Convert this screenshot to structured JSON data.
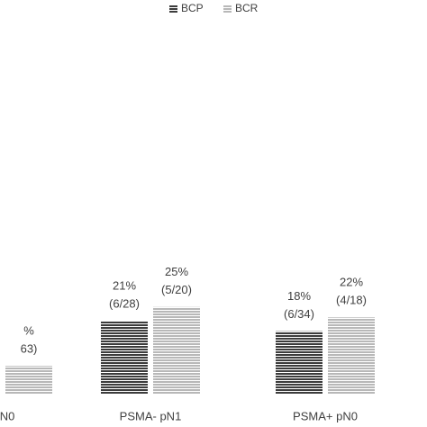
{
  "chart_data": {
    "type": "bar",
    "categories": [
      "N0",
      "PSMA- pN1",
      "PSMA+ pN0"
    ],
    "series": [
      {
        "name": "BCP",
        "color": "#3c3c3c",
        "values": [
          null,
          21,
          18
        ],
        "value_labels": [
          null,
          "21%",
          "18%"
        ],
        "counts": [
          null,
          "(6/28)",
          "(6/34)"
        ]
      },
      {
        "name": "BCR",
        "color": "#b8b8b8",
        "values": [
          8,
          25,
          22
        ],
        "value_labels": [
          "%",
          "25%",
          "22%"
        ],
        "counts": [
          "63)",
          "(5/20)",
          "(4/18)"
        ]
      }
    ]
  }
}
